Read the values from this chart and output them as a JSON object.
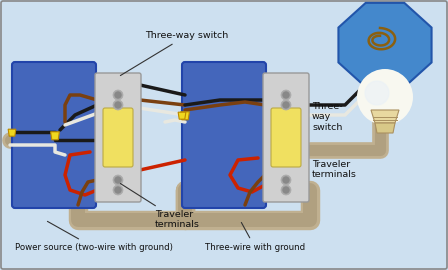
{
  "bg_color": "#cde0f0",
  "border_color": "#aaaaaa",
  "wire_colors": {
    "black": "#1a1a1a",
    "white": "#e8e8e0",
    "red": "#cc2200",
    "brown": "#7a4010",
    "green": "#226622",
    "gray": "#b0a898",
    "tan_outer": "#c0b090",
    "tan_inner": "#b0a080",
    "yellow": "#f0d820"
  },
  "labels": {
    "three_way_switch1": "Three-way switch",
    "three_way_switch2": "Three-\nway\nswitch",
    "traveler_terminals1": "Traveler\nterminals",
    "traveler_terminals2": "Traveler\nterminals",
    "power_source": "Power source (two-wire with ground)",
    "three_wire": "Three-wire with ground"
  },
  "box1_color": "#4466bb",
  "box2_color": "#4466bb",
  "lamp_box_color": "#4488cc",
  "switch_body_color": "#d0d0d0",
  "switch_toggle_color": "#f0e060",
  "xlim": [
    0,
    448
  ],
  "ylim": [
    0,
    270
  ]
}
